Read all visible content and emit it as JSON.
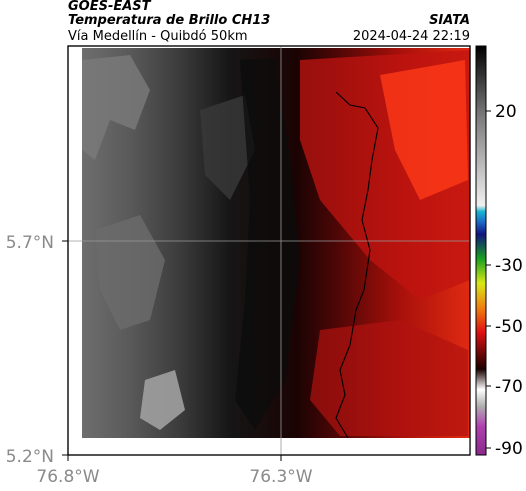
{
  "header": {
    "satellite": "GOES-EAST",
    "product": "Temperatura de Brillo CH13",
    "region": "Vía Medellín - Quibdó 50km",
    "organization": "SIATA",
    "datetime": "2024-04-24 22:19"
  },
  "axes": {
    "lat_ticks": [
      "5.7°N",
      "5.2°N"
    ],
    "lon_ticks": [
      "76.8°W",
      "76.3°W"
    ]
  },
  "colorbar": {
    "ticks": [
      "20",
      "-30",
      "-50",
      "-70",
      "-90"
    ]
  },
  "colors": {
    "cold_gray": "#5a5a5a",
    "mid_dark": "#141414",
    "warm_red": "#c8140a",
    "hot_red": "#ff4a1e",
    "border_line": "#000000",
    "grid_line": "#9a9a9a"
  }
}
